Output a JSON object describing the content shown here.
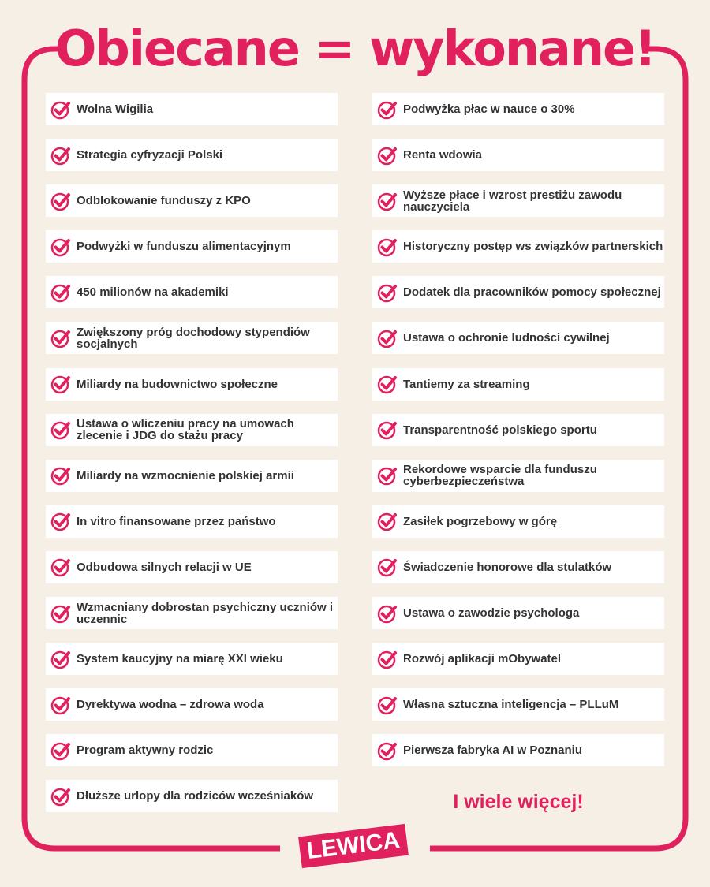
{
  "title": "Obiecane = wykonane!",
  "colors": {
    "accent": "#e0215e",
    "background": "#f6efe6",
    "item_bg": "#ffffff",
    "text": "#333333"
  },
  "item_icon": "check-circle-icon",
  "left_items": [
    "Wolna Wigilia",
    "Strategia cyfryzacji Polski",
    "Odblokowanie funduszy z KPO",
    "Podwyżki w funduszu alimentacyjnym",
    "450 milionów na akademiki",
    "Zwiększony próg dochodowy stypendiów socjalnych",
    "Miliardy na budownictwo społeczne",
    "Ustawa o wliczeniu pracy na umowach zlecenie i JDG do stażu pracy",
    "Miliardy na wzmocnienie polskiej armii",
    "In vitro finansowane przez państwo",
    "Odbudowa silnych relacji w UE",
    "Wzmacniany dobrostan psychiczny uczniów i uczennic",
    "System kaucyjny na miarę XXI wieku",
    "Dyrektywa wodna – zdrowa woda",
    "Program aktywny rodzic",
    "Dłuższe urlopy dla rodziców wcześniaków"
  ],
  "right_items": [
    "Podwyżka płac w nauce o 30%",
    "Renta wdowia",
    "Wyższe płace i wzrost prestiżu zawodu nauczyciela",
    "Historyczny postęp ws związków partnerskich",
    "Dodatek dla pracowników pomocy społecznej",
    "Ustawa o ochronie ludności cywilnej",
    "Tantiemy za streaming",
    "Transparentność polskiego sportu",
    "Rekordowe wsparcie dla funduszu cyberbezpieczeństwa",
    "Zasiłek pogrzebowy w górę",
    "Świadczenie honorowe dla stulatków",
    "Ustawa o zawodzie psychologa",
    "Rozwój aplikacji mObywatel",
    "Własna sztuczna inteligencja – PLLuM",
    "Pierwsza fabryka AI w Poznaniu"
  ],
  "more": "I wiele więcej!",
  "logo": "LEWICA"
}
